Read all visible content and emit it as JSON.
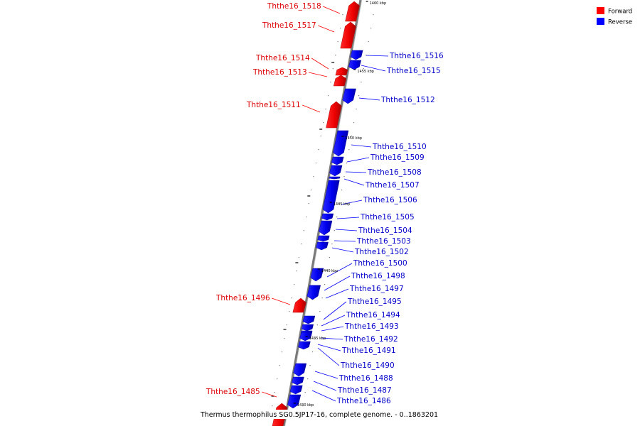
{
  "caption": "Thermus thermophilus SG0.5JP17-16, complete genome. - 0..1863201",
  "legend": [
    {
      "label": "Forward",
      "color": "#ff0000"
    },
    {
      "label": "Reverse",
      "color": "#0000ff"
    }
  ],
  "ticks": [
    {
      "label": "1460 kbp"
    },
    {
      "label": "1455 kbp"
    },
    {
      "label": "1450 kbp"
    },
    {
      "label": "1445 kbp"
    },
    {
      "label": "1440 kbp"
    },
    {
      "label": "1435 kbp"
    },
    {
      "label": "1430 kbp"
    }
  ],
  "genes": [
    {
      "label": "Ththe16_1518",
      "strand": "forward"
    },
    {
      "label": "Ththe16_1517",
      "strand": "forward"
    },
    {
      "label": "Ththe16_1516",
      "strand": "reverse"
    },
    {
      "label": "Ththe16_1515",
      "strand": "reverse"
    },
    {
      "label": "Ththe16_1514",
      "strand": "forward"
    },
    {
      "label": "Ththe16_1513",
      "strand": "forward"
    },
    {
      "label": "Ththe16_1512",
      "strand": "reverse"
    },
    {
      "label": "Ththe16_1511",
      "strand": "forward"
    },
    {
      "label": "Ththe16_1510",
      "strand": "reverse"
    },
    {
      "label": "Ththe16_1509",
      "strand": "reverse"
    },
    {
      "label": "Ththe16_1508",
      "strand": "reverse"
    },
    {
      "label": "Ththe16_1507",
      "strand": "reverse"
    },
    {
      "label": "Ththe16_1506",
      "strand": "reverse"
    },
    {
      "label": "Ththe16_1505",
      "strand": "reverse"
    },
    {
      "label": "Ththe16_1504",
      "strand": "reverse"
    },
    {
      "label": "Ththe16_1503",
      "strand": "reverse"
    },
    {
      "label": "Ththe16_1502",
      "strand": "reverse"
    },
    {
      "label": "Ththe16_1500",
      "strand": "reverse"
    },
    {
      "label": "Ththe16_1498",
      "strand": "reverse"
    },
    {
      "label": "Ththe16_1497",
      "strand": "reverse"
    },
    {
      "label": "Ththe16_1496",
      "strand": "forward"
    },
    {
      "label": "Ththe16_1495",
      "strand": "reverse"
    },
    {
      "label": "Ththe16_1494",
      "strand": "reverse"
    },
    {
      "label": "Ththe16_1493",
      "strand": "reverse"
    },
    {
      "label": "Ththe16_1492",
      "strand": "reverse"
    },
    {
      "label": "Ththe16_1491",
      "strand": "reverse"
    },
    {
      "label": "Ththe16_1490",
      "strand": "reverse"
    },
    {
      "label": "Ththe16_1488",
      "strand": "reverse"
    },
    {
      "label": "Ththe16_1487",
      "strand": "reverse"
    },
    {
      "label": "Ththe16_1486",
      "strand": "reverse"
    },
    {
      "label": "Ththe16_1485",
      "strand": "forward"
    }
  ]
}
